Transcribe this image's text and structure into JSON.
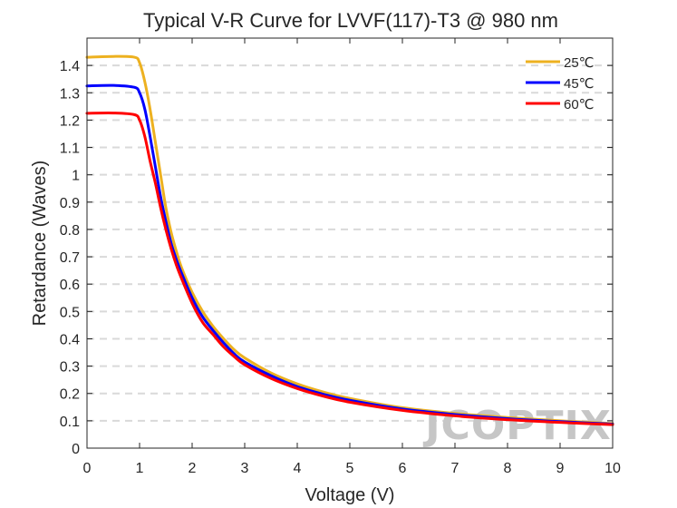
{
  "chart_data": {
    "type": "line",
    "title": "Typical V-R Curve for LVVF(117)-T3 @ 980 nm",
    "xlabel": "Voltage (V)",
    "ylabel": "Retardance (Waves)",
    "xlim": [
      0,
      10
    ],
    "ylim": [
      0,
      1.5
    ],
    "xticks": [
      "0",
      "1",
      "2",
      "3",
      "4",
      "5",
      "6",
      "7",
      "8",
      "9",
      "10"
    ],
    "yticks": [
      "0",
      "0.1",
      "0.2",
      "0.3",
      "0.4",
      "0.5",
      "0.6",
      "0.7",
      "0.8",
      "0.9",
      "1",
      "1.1",
      "1.2",
      "1.3",
      "1.4"
    ],
    "grid": "horizontal dashed",
    "legend_position": "top-right",
    "watermark": "JCOPTIX",
    "series": [
      {
        "name": "25℃",
        "color": "#EDB120",
        "x": [
          0,
          0.5,
          0.9,
          1.0,
          1.1,
          1.2,
          1.3,
          1.4,
          1.5,
          1.6,
          1.7,
          1.8,
          2.0,
          2.2,
          2.4,
          2.6,
          2.8,
          3.0,
          3.5,
          4.0,
          4.5,
          5.0,
          6.0,
          7.0,
          8.0,
          9.0,
          10.0
        ],
        "y": [
          1.43,
          1.433,
          1.43,
          1.41,
          1.34,
          1.24,
          1.12,
          1.0,
          0.88,
          0.79,
          0.72,
          0.66,
          0.57,
          0.5,
          0.445,
          0.4,
          0.36,
          0.33,
          0.275,
          0.235,
          0.205,
          0.182,
          0.148,
          0.127,
          0.112,
          0.1,
          0.09
        ]
      },
      {
        "name": "45℃",
        "color": "#0000FF",
        "x": [
          0,
          0.5,
          0.9,
          1.0,
          1.1,
          1.2,
          1.3,
          1.4,
          1.5,
          1.6,
          1.7,
          1.8,
          2.0,
          2.2,
          2.4,
          2.6,
          2.8,
          3.0,
          3.5,
          4.0,
          4.5,
          5.0,
          6.0,
          7.0,
          8.0,
          9.0,
          10.0
        ],
        "y": [
          1.325,
          1.327,
          1.32,
          1.3,
          1.24,
          1.14,
          1.03,
          0.92,
          0.83,
          0.75,
          0.69,
          0.64,
          0.55,
          0.48,
          0.43,
          0.385,
          0.345,
          0.315,
          0.265,
          0.225,
          0.197,
          0.175,
          0.143,
          0.123,
          0.108,
          0.097,
          0.088
        ]
      },
      {
        "name": "60℃",
        "color": "#FF0000",
        "x": [
          0,
          0.5,
          0.9,
          1.0,
          1.1,
          1.2,
          1.3,
          1.4,
          1.5,
          1.6,
          1.7,
          1.8,
          2.0,
          2.2,
          2.4,
          2.6,
          2.8,
          3.0,
          3.5,
          4.0,
          4.5,
          5.0,
          6.0,
          7.0,
          8.0,
          9.0,
          10.0
        ],
        "y": [
          1.225,
          1.226,
          1.22,
          1.2,
          1.14,
          1.05,
          0.97,
          0.88,
          0.8,
          0.73,
          0.67,
          0.62,
          0.53,
          0.46,
          0.415,
          0.37,
          0.335,
          0.305,
          0.255,
          0.218,
          0.19,
          0.168,
          0.138,
          0.118,
          0.104,
          0.094,
          0.086
        ]
      }
    ]
  }
}
